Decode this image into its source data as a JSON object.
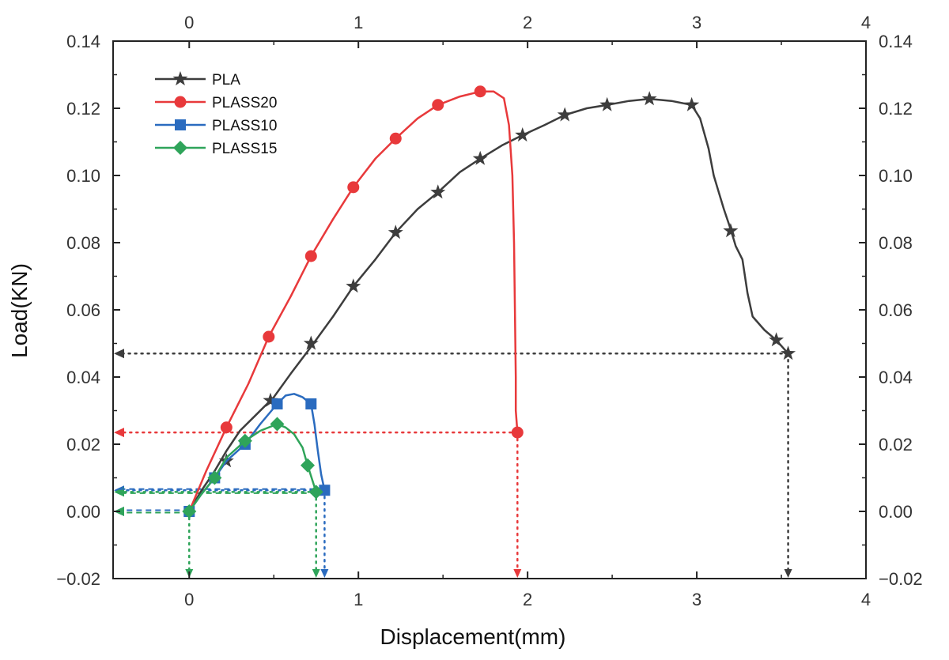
{
  "chart_data": {
    "type": "line",
    "title": "",
    "xlabel": "Displacement(mm)",
    "ylabel": "Load(KN)",
    "xlim": [
      -0.45,
      4
    ],
    "ylim": [
      -0.02,
      0.14
    ],
    "x_ticks": [
      "0",
      "1",
      "2",
      "3",
      "4"
    ],
    "y_ticks": [
      "−0.02",
      "0.00",
      "0.02",
      "0.04",
      "0.06",
      "0.08",
      "0.10",
      "0.12",
      "0.14"
    ],
    "top_axis_mirrors_x": true,
    "right_axis_mirrors_y": true,
    "grid": false,
    "legend_position": "top-left",
    "series": [
      {
        "name": "PLA",
        "color": "#3d3d3d",
        "marker": "star",
        "x": [
          0.0,
          0.07,
          0.15,
          0.22,
          0.3,
          0.4,
          0.5,
          0.6,
          0.72,
          0.85,
          0.97,
          1.1,
          1.22,
          1.35,
          1.47,
          1.6,
          1.72,
          1.85,
          1.97,
          2.1,
          2.22,
          2.35,
          2.47,
          2.6,
          2.72,
          2.85,
          2.97,
          3.02,
          3.07,
          3.1,
          3.13,
          3.16,
          3.2,
          3.23,
          3.27,
          3.3,
          3.33,
          3.4,
          3.47,
          3.54
        ],
        "y": [
          0.0,
          0.006,
          0.012,
          0.018,
          0.024,
          0.029,
          0.034,
          0.041,
          0.049,
          0.058,
          0.067,
          0.075,
          0.083,
          0.09,
          0.095,
          0.101,
          0.105,
          0.109,
          0.112,
          0.115,
          0.118,
          0.12,
          0.121,
          0.1222,
          0.1228,
          0.1222,
          0.121,
          0.117,
          0.108,
          0.1,
          0.095,
          0.09,
          0.084,
          0.079,
          0.075,
          0.065,
          0.058,
          0.054,
          0.051,
          0.047
        ],
        "markers": [
          [
            0.22,
            0.015
          ],
          [
            0.48,
            0.033
          ],
          [
            0.72,
            0.05
          ],
          [
            0.97,
            0.067
          ],
          [
            1.22,
            0.083
          ],
          [
            1.47,
            0.095
          ],
          [
            1.72,
            0.105
          ],
          [
            1.97,
            0.112
          ],
          [
            2.22,
            0.118
          ],
          [
            2.47,
            0.121
          ],
          [
            2.72,
            0.1228
          ],
          [
            2.97,
            0.121
          ],
          [
            3.2,
            0.0835
          ],
          [
            3.47,
            0.051
          ],
          [
            3.54,
            0.047
          ]
        ]
      },
      {
        "name": "PLASS20",
        "color": "#e8393b",
        "marker": "circle",
        "x": [
          0.0,
          0.1,
          0.22,
          0.35,
          0.47,
          0.6,
          0.72,
          0.85,
          0.97,
          1.1,
          1.22,
          1.35,
          1.47,
          1.6,
          1.72,
          1.8,
          1.86,
          1.89,
          1.91,
          1.92,
          1.925,
          1.93,
          1.93,
          1.94
        ],
        "y": [
          0.0,
          0.012,
          0.025,
          0.038,
          0.052,
          0.064,
          0.076,
          0.087,
          0.0965,
          0.105,
          0.111,
          0.117,
          0.121,
          0.1235,
          0.125,
          0.125,
          0.123,
          0.115,
          0.1,
          0.08,
          0.06,
          0.04,
          0.03,
          0.0235
        ],
        "markers": [
          [
            0.22,
            0.025
          ],
          [
            0.47,
            0.052
          ],
          [
            0.72,
            0.076
          ],
          [
            0.97,
            0.0965
          ],
          [
            1.22,
            0.111
          ],
          [
            1.47,
            0.121
          ],
          [
            1.72,
            0.125
          ],
          [
            1.94,
            0.0235
          ]
        ]
      },
      {
        "name": "PLASS10",
        "color": "#2a6bbf",
        "marker": "square",
        "x": [
          0.0,
          0.07,
          0.15,
          0.22,
          0.33,
          0.42,
          0.52,
          0.57,
          0.62,
          0.67,
          0.72,
          0.74,
          0.76,
          0.78,
          0.8
        ],
        "y": [
          0.0,
          0.005,
          0.01,
          0.015,
          0.02,
          0.026,
          0.032,
          0.0345,
          0.035,
          0.034,
          0.032,
          0.026,
          0.018,
          0.011,
          0.0063
        ],
        "markers": [
          [
            0.0,
            0.0
          ],
          [
            0.15,
            0.01
          ],
          [
            0.33,
            0.02
          ],
          [
            0.52,
            0.032
          ],
          [
            0.72,
            0.032
          ],
          [
            0.8,
            0.0063
          ]
        ]
      },
      {
        "name": "PLASS15",
        "color": "#2fa45a",
        "marker": "diamond",
        "x": [
          0.0,
          0.07,
          0.15,
          0.22,
          0.33,
          0.42,
          0.52,
          0.57,
          0.62,
          0.67,
          0.7,
          0.75
        ],
        "y": [
          0.0,
          0.005,
          0.01,
          0.016,
          0.021,
          0.024,
          0.026,
          0.025,
          0.023,
          0.019,
          0.0137,
          0.0058
        ],
        "markers": [
          [
            0.0,
            0.0
          ],
          [
            0.15,
            0.01
          ],
          [
            0.33,
            0.021
          ],
          [
            0.52,
            0.026
          ],
          [
            0.7,
            0.0137
          ],
          [
            0.75,
            0.0058
          ]
        ]
      }
    ],
    "annotations": [
      {
        "kind": "dotted-arrows",
        "color": "#3d3d3d",
        "x": 3.54,
        "y": 0.047
      },
      {
        "kind": "dotted-arrows",
        "color": "#e8393b",
        "x": 1.94,
        "y": 0.0235
      },
      {
        "kind": "dotted-arrows",
        "color": "#2a6bbf",
        "x": 0.8,
        "y": 0.0063
      },
      {
        "kind": "dotted-arrows",
        "color": "#2fa45a",
        "x": 0.75,
        "y": 0.0058
      },
      {
        "kind": "dashed-arrow-left",
        "color": "#2a6bbf",
        "x": 0.0,
        "y": 0.0
      },
      {
        "kind": "dashed-arrow-left",
        "color": "#2fa45a",
        "x": 0.0,
        "y": 0.0
      },
      {
        "kind": "dashed-arrow-down",
        "color": "#2fa45a",
        "x": 0.0,
        "y": 0.0
      }
    ]
  }
}
